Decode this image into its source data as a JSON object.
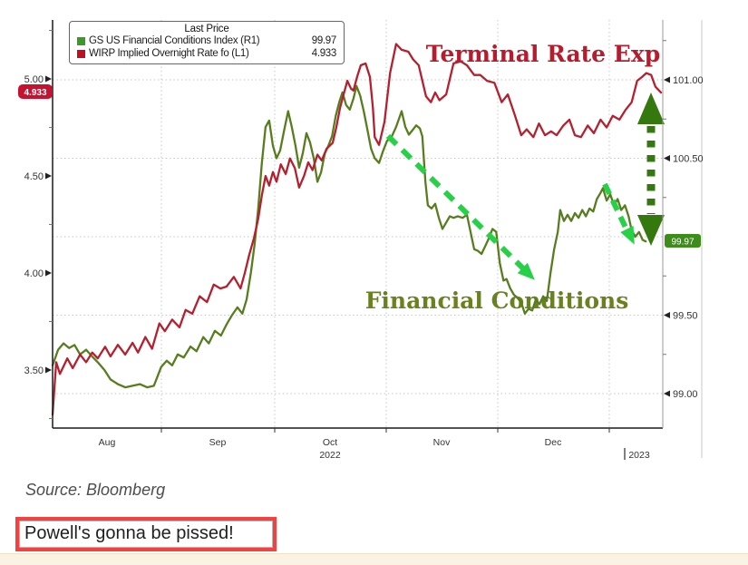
{
  "page": {
    "background": "#ffffff",
    "footer": {
      "source_text": "Source: Bloomberg",
      "caption_text": "Powell's gonna be pissed!",
      "caption_border_color": "#f54040",
      "bottom_strip_color": "#faf3e4"
    }
  },
  "chart": {
    "legend": {
      "title": "Last Price",
      "items": [
        {
          "label": "GS US Financial Conditions Index  (R1)",
          "value": "99.97",
          "swatch_color": "#3a9a28"
        },
        {
          "label": "WIRP Implied Overnight Rate fo  (L1)",
          "value": "4.933",
          "swatch_color": "#c00f25"
        }
      ]
    },
    "left_axis": {
      "tick_labels": [
        "5.00",
        "4.50",
        "4.00",
        "3.50"
      ],
      "badge": {
        "text": "4.933",
        "color": "#c41230"
      }
    },
    "right_axis": {
      "tick_labels": [
        "101.00",
        "100.50",
        "99.50",
        "99.00"
      ],
      "badge": {
        "text": "99.97",
        "color": "#3e8c1b"
      }
    },
    "x_axis": {
      "month_labels": [
        "Aug",
        "Sep",
        "Oct",
        "Nov",
        "Dec"
      ],
      "year_left": "2022",
      "year_right": "2023",
      "year_separator": "|"
    },
    "annotations": {
      "terminal_rate": {
        "text": "Terminal Rate Exp",
        "color": "#b51d2e"
      },
      "financial_conditions": {
        "text": "Financial Conditions",
        "color": "#6a811f"
      },
      "dashed_arrow_color": "#27d147",
      "dotted_double_arrow_color": "#35790e"
    }
  },
  "chart_data": {
    "type": "line",
    "x_categories": [
      "Aug",
      "Sep",
      "Oct",
      "Nov",
      "Dec",
      "2023"
    ],
    "left_ylim": [
      3.19,
      5.31
    ],
    "right_ylim": [
      98.78,
      101.39
    ],
    "left_ticks": [
      5.0,
      4.5,
      4.0,
      3.5
    ],
    "right_ticks": [
      101.0,
      100.5,
      100.0,
      99.5,
      99.0
    ],
    "grid": true,
    "legend_position": "top-left",
    "series": [
      {
        "name": "GS US Financial Conditions Index",
        "axis": "right",
        "color": "#577d1f",
        "last_price": 99.97,
        "points": [
          [
            0,
            99.18
          ],
          [
            0.009,
            99.28
          ],
          [
            0.018,
            99.32
          ],
          [
            0.027,
            99.29
          ],
          [
            0.036,
            99.31
          ],
          [
            0.045,
            99.25
          ],
          [
            0.055,
            99.28
          ],
          [
            0.064,
            99.24
          ],
          [
            0.074,
            99.2
          ],
          [
            0.085,
            99.15
          ],
          [
            0.095,
            99.09
          ],
          [
            0.107,
            99.06
          ],
          [
            0.119,
            99.04
          ],
          [
            0.131,
            99.05
          ],
          [
            0.143,
            99.06
          ],
          [
            0.155,
            99.04
          ],
          [
            0.166,
            99.05
          ],
          [
            0.178,
            99.17
          ],
          [
            0.187,
            99.21
          ],
          [
            0.196,
            99.18
          ],
          [
            0.205,
            99.25
          ],
          [
            0.215,
            99.23
          ],
          [
            0.226,
            99.3
          ],
          [
            0.236,
            99.27
          ],
          [
            0.247,
            99.36
          ],
          [
            0.256,
            99.32
          ],
          [
            0.266,
            99.4
          ],
          [
            0.276,
            99.37
          ],
          [
            0.285,
            99.44
          ],
          [
            0.294,
            99.5
          ],
          [
            0.303,
            99.55
          ],
          [
            0.311,
            99.51
          ],
          [
            0.318,
            99.6
          ],
          [
            0.325,
            99.77
          ],
          [
            0.331,
            99.95
          ],
          [
            0.337,
            100.18
          ],
          [
            0.343,
            100.47
          ],
          [
            0.349,
            100.7
          ],
          [
            0.355,
            100.74
          ],
          [
            0.361,
            100.58
          ],
          [
            0.367,
            100.5
          ],
          [
            0.373,
            100.55
          ],
          [
            0.379,
            100.67
          ],
          [
            0.386,
            100.8
          ],
          [
            0.392,
            100.7
          ],
          [
            0.398,
            100.58
          ],
          [
            0.404,
            100.44
          ],
          [
            0.41,
            100.53
          ],
          [
            0.416,
            100.66
          ],
          [
            0.422,
            100.6
          ],
          [
            0.428,
            100.5
          ],
          [
            0.434,
            100.35
          ],
          [
            0.44,
            100.41
          ],
          [
            0.446,
            100.53
          ],
          [
            0.452,
            100.58
          ],
          [
            0.458,
            100.64
          ],
          [
            0.464,
            100.77
          ],
          [
            0.47,
            100.86
          ],
          [
            0.475,
            100.92
          ],
          [
            0.481,
            100.84
          ],
          [
            0.487,
            100.81
          ],
          [
            0.493,
            100.88
          ],
          [
            0.498,
            100.96
          ],
          [
            0.504,
            100.9
          ],
          [
            0.51,
            100.8
          ],
          [
            0.516,
            100.68
          ],
          [
            0.522,
            100.56
          ],
          [
            0.528,
            100.5
          ],
          [
            0.535,
            100.47
          ],
          [
            0.541,
            100.54
          ],
          [
            0.548,
            100.61
          ],
          [
            0.556,
            100.64
          ],
          [
            0.563,
            100.7
          ],
          [
            0.572,
            100.8
          ],
          [
            0.578,
            100.7
          ],
          [
            0.584,
            100.65
          ],
          [
            0.59,
            100.68
          ],
          [
            0.596,
            100.71
          ],
          [
            0.602,
            100.69
          ],
          [
            0.606,
            100.64
          ],
          [
            0.611,
            100.35
          ],
          [
            0.615,
            100.2
          ],
          [
            0.621,
            100.18
          ],
          [
            0.627,
            100.21
          ],
          [
            0.633,
            100.12
          ],
          [
            0.639,
            100.05
          ],
          [
            0.645,
            100.09
          ],
          [
            0.651,
            100.13
          ],
          [
            0.657,
            100.12
          ],
          [
            0.664,
            100.13
          ],
          [
            0.672,
            100.12
          ],
          [
            0.679,
            100.14
          ],
          [
            0.685,
            100.03
          ],
          [
            0.691,
            99.92
          ],
          [
            0.697,
            99.91
          ],
          [
            0.703,
            99.89
          ],
          [
            0.709,
            99.94
          ],
          [
            0.715,
            99.99
          ],
          [
            0.721,
            100.05
          ],
          [
            0.727,
            100.03
          ],
          [
            0.733,
            99.83
          ],
          [
            0.739,
            99.72
          ],
          [
            0.744,
            99.73
          ],
          [
            0.75,
            99.67
          ],
          [
            0.756,
            99.63
          ],
          [
            0.762,
            99.61
          ],
          [
            0.768,
            99.58
          ],
          [
            0.774,
            99.51
          ],
          [
            0.78,
            99.54
          ],
          [
            0.786,
            99.53
          ],
          [
            0.792,
            99.6
          ],
          [
            0.798,
            99.57
          ],
          [
            0.804,
            99.62
          ],
          [
            0.81,
            99.59
          ],
          [
            0.816,
            99.77
          ],
          [
            0.822,
            99.92
          ],
          [
            0.828,
            100.03
          ],
          [
            0.832,
            100.17
          ],
          [
            0.838,
            100.1
          ],
          [
            0.844,
            100.14
          ],
          [
            0.85,
            100.1
          ],
          [
            0.856,
            100.15
          ],
          [
            0.862,
            100.12
          ],
          [
            0.868,
            100.17
          ],
          [
            0.874,
            100.13
          ],
          [
            0.88,
            100.18
          ],
          [
            0.886,
            100.16
          ],
          [
            0.892,
            100.24
          ],
          [
            0.898,
            100.28
          ],
          [
            0.902,
            100.31
          ],
          [
            0.908,
            100.23
          ],
          [
            0.914,
            100.27
          ],
          [
            0.92,
            100.2
          ],
          [
            0.926,
            100.24
          ],
          [
            0.932,
            100.17
          ],
          [
            0.938,
            100.2
          ],
          [
            0.944,
            100.13
          ],
          [
            0.949,
            100.04
          ],
          [
            0.955,
            100.0
          ],
          [
            0.961,
            100.03
          ],
          [
            0.967,
            99.98
          ],
          [
            0.972,
            99.97
          ]
        ]
      },
      {
        "name": "WIRP Implied Overnight Rate fo",
        "axis": "left",
        "color": "#b5202f",
        "last_price": 4.933,
        "points": [
          [
            0,
            3.27
          ],
          [
            0.006,
            3.54
          ],
          [
            0.012,
            3.48
          ],
          [
            0.024,
            3.56
          ],
          [
            0.033,
            3.51
          ],
          [
            0.045,
            3.58
          ],
          [
            0.055,
            3.54
          ],
          [
            0.065,
            3.59
          ],
          [
            0.074,
            3.56
          ],
          [
            0.086,
            3.62
          ],
          [
            0.095,
            3.57
          ],
          [
            0.107,
            3.63
          ],
          [
            0.119,
            3.58
          ],
          [
            0.131,
            3.64
          ],
          [
            0.14,
            3.59
          ],
          [
            0.152,
            3.67
          ],
          [
            0.163,
            3.61
          ],
          [
            0.175,
            3.74
          ],
          [
            0.184,
            3.7
          ],
          [
            0.196,
            3.76
          ],
          [
            0.208,
            3.72
          ],
          [
            0.218,
            3.81
          ],
          [
            0.229,
            3.79
          ],
          [
            0.241,
            3.88
          ],
          [
            0.253,
            3.85
          ],
          [
            0.264,
            3.94
          ],
          [
            0.275,
            3.92
          ],
          [
            0.285,
            3.93
          ],
          [
            0.297,
            3.98
          ],
          [
            0.308,
            3.92
          ],
          [
            0.315,
            4.0
          ],
          [
            0.322,
            4.09
          ],
          [
            0.33,
            4.18
          ],
          [
            0.337,
            4.28
          ],
          [
            0.343,
            4.4
          ],
          [
            0.349,
            4.5
          ],
          [
            0.355,
            4.45
          ],
          [
            0.361,
            4.52
          ],
          [
            0.367,
            4.47
          ],
          [
            0.374,
            4.56
          ],
          [
            0.382,
            4.51
          ],
          [
            0.389,
            4.59
          ],
          [
            0.397,
            4.54
          ],
          [
            0.404,
            4.44
          ],
          [
            0.412,
            4.5
          ],
          [
            0.419,
            4.57
          ],
          [
            0.426,
            4.53
          ],
          [
            0.434,
            4.61
          ],
          [
            0.441,
            4.58
          ],
          [
            0.449,
            4.64
          ],
          [
            0.459,
            4.67
          ],
          [
            0.465,
            4.75
          ],
          [
            0.471,
            4.85
          ],
          [
            0.477,
            4.92
          ],
          [
            0.483,
            4.99
          ],
          [
            0.489,
            4.95
          ],
          [
            0.493,
            4.94
          ],
          [
            0.499,
            5.01
          ],
          [
            0.505,
            5.07
          ],
          [
            0.513,
            5.08
          ],
          [
            0.52,
            5.01
          ],
          [
            0.525,
            4.85
          ],
          [
            0.528,
            4.7
          ],
          [
            0.535,
            4.66
          ],
          [
            0.544,
            4.78
          ],
          [
            0.553,
            5.03
          ],
          [
            0.563,
            5.18
          ],
          [
            0.572,
            5.15
          ],
          [
            0.583,
            5.14
          ],
          [
            0.591,
            5.1
          ],
          [
            0.6,
            5.07
          ],
          [
            0.612,
            4.91
          ],
          [
            0.62,
            4.88
          ],
          [
            0.627,
            4.93
          ],
          [
            0.634,
            4.89
          ],
          [
            0.645,
            4.92
          ],
          [
            0.657,
            5.08
          ],
          [
            0.669,
            5.09
          ],
          [
            0.679,
            5.07
          ],
          [
            0.691,
            5.02
          ],
          [
            0.701,
            5.02
          ],
          [
            0.712,
            4.99
          ],
          [
            0.724,
            4.98
          ],
          [
            0.736,
            4.88
          ],
          [
            0.746,
            4.92
          ],
          [
            0.758,
            4.81
          ],
          [
            0.768,
            4.71
          ],
          [
            0.777,
            4.74
          ],
          [
            0.788,
            4.7
          ],
          [
            0.797,
            4.77
          ],
          [
            0.807,
            4.71
          ],
          [
            0.817,
            4.73
          ],
          [
            0.826,
            4.71
          ],
          [
            0.837,
            4.76
          ],
          [
            0.847,
            4.79
          ],
          [
            0.856,
            4.71
          ],
          [
            0.866,
            4.7
          ],
          [
            0.877,
            4.76
          ],
          [
            0.887,
            4.72
          ],
          [
            0.898,
            4.79
          ],
          [
            0.908,
            4.75
          ],
          [
            0.918,
            4.81
          ],
          [
            0.929,
            4.79
          ],
          [
            0.939,
            4.84
          ],
          [
            0.949,
            4.88
          ],
          [
            0.958,
            4.99
          ],
          [
            0.966,
            5.01
          ],
          [
            0.973,
            5.03
          ],
          [
            0.981,
            5.02
          ],
          [
            0.988,
            4.96
          ],
          [
            0.997,
            4.93
          ]
        ]
      }
    ]
  }
}
